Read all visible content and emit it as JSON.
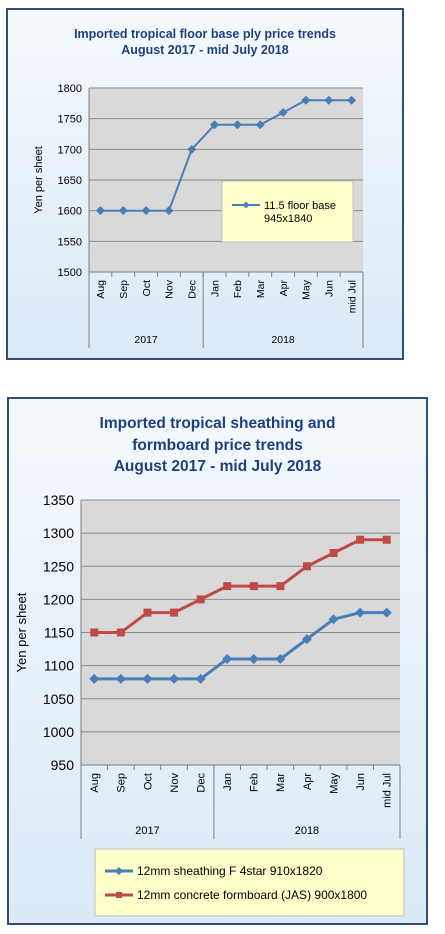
{
  "charts": [
    {
      "title_lines": [
        "Imported tropical floor base ply price trends",
        "August 2017 - mid July 2018"
      ],
      "chart_data": {
        "type": "line",
        "title": "Imported tropical floor base ply price trends August 2017 - mid July 2018",
        "ylabel": "Yen per sheet",
        "xlabel": "",
        "categories": [
          "Aug",
          "Sep",
          "Oct",
          "Nov",
          "Dec",
          "Jan",
          "Feb",
          "Mar",
          "Apr",
          "May",
          "Jun",
          "mid Jul"
        ],
        "year_groups": [
          {
            "label": "2017",
            "count": 5
          },
          {
            "label": "2018",
            "count": 7
          }
        ],
        "ylim": [
          1500,
          1800
        ],
        "yticks": [
          1500,
          1550,
          1600,
          1650,
          1700,
          1750,
          1800
        ],
        "grid": true,
        "legend_position": "inside-right",
        "series": [
          {
            "name": "11.5 floor base 945x1840",
            "color": "#4a7ebb",
            "marker": "diamond",
            "values": [
              1600,
              1600,
              1600,
              1600,
              1700,
              1740,
              1740,
              1740,
              1760,
              1780,
              1780,
              1780
            ]
          }
        ]
      }
    },
    {
      "title_lines": [
        "Imported tropical sheathing and",
        "formboard price trends",
        "August 2017 - mid July 2018"
      ],
      "chart_data": {
        "type": "line",
        "title": "Imported tropical sheathing and formboard price trends August 2017 - mid July 2018",
        "ylabel": "Yen per sheet",
        "xlabel": "",
        "categories": [
          "Aug",
          "Sep",
          "Oct",
          "Nov",
          "Dec",
          "Jan",
          "Feb",
          "Mar",
          "Apr",
          "May",
          "Jun",
          "mid Jul"
        ],
        "year_groups": [
          {
            "label": "2017",
            "count": 5
          },
          {
            "label": "2018",
            "count": 7
          }
        ],
        "ylim": [
          950,
          1350
        ],
        "yticks": [
          950,
          1000,
          1050,
          1100,
          1150,
          1200,
          1250,
          1300,
          1350
        ],
        "grid": true,
        "legend_position": "bottom",
        "series": [
          {
            "name": "12mm sheathing F 4star 910x1820",
            "color": "#4a7ebb",
            "marker": "diamond",
            "values": [
              1080,
              1080,
              1080,
              1080,
              1080,
              1110,
              1110,
              1110,
              1140,
              1170,
              1180,
              1180
            ]
          },
          {
            "name": "12mm concrete formboard (JAS) 900x1800",
            "color": "#be4b48",
            "marker": "square",
            "values": [
              1150,
              1150,
              1180,
              1180,
              1200,
              1220,
              1220,
              1220,
              1250,
              1270,
              1290,
              1290
            ]
          }
        ]
      }
    }
  ]
}
